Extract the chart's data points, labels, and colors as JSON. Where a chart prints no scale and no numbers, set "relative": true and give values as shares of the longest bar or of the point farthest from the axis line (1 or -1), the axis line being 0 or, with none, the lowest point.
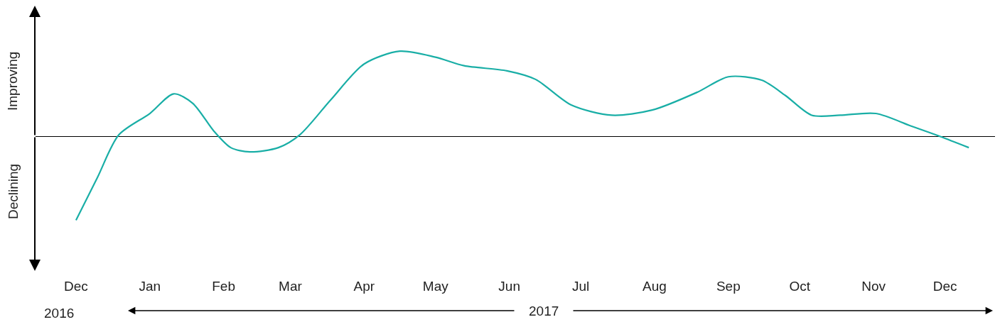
{
  "chart_data": {
    "type": "line",
    "relative": true,
    "x": [
      "2016-12-01",
      "2016-12-10",
      "2016-12-19",
      "2017-01-01",
      "2017-01-11",
      "2017-01-19",
      "2017-01-28",
      "2017-02-04",
      "2017-02-12",
      "2017-02-24",
      "2017-03-05",
      "2017-03-18",
      "2017-04-01",
      "2017-04-16",
      "2017-05-01",
      "2017-05-13",
      "2017-05-31",
      "2017-06-12",
      "2017-06-27",
      "2017-07-14",
      "2017-07-31",
      "2017-08-19",
      "2017-09-01",
      "2017-09-15",
      "2017-09-25",
      "2017-10-06",
      "2017-10-18",
      "2017-11-02",
      "2017-11-17",
      "2017-11-29",
      "2017-12-11"
    ],
    "series": [
      {
        "color": "#19aea6",
        "values": [
          -0.98,
          -0.48,
          0.02,
          0.27,
          0.5,
          0.39,
          0.06,
          -0.13,
          -0.18,
          -0.13,
          0.02,
          0.43,
          0.85,
          1.0,
          0.93,
          0.83,
          0.77,
          0.67,
          0.37,
          0.25,
          0.31,
          0.52,
          0.7,
          0.66,
          0.48,
          0.25,
          0.25,
          0.27,
          0.12,
          0,
          -0.13
        ]
      }
    ],
    "xlim": [
      "2016-11-14",
      "2017-12-22"
    ],
    "xticks": [
      {
        "value": "2016-12-01",
        "label": "Dec"
      },
      {
        "value": "2017-01-01",
        "label": "Jan"
      },
      {
        "value": "2017-02-01",
        "label": "Feb"
      },
      {
        "value": "2017-03-01",
        "label": "Mar"
      },
      {
        "value": "2017-04-01",
        "label": "Apr"
      },
      {
        "value": "2017-05-01",
        "label": "May"
      },
      {
        "value": "2017-06-01",
        "label": "Jun"
      },
      {
        "value": "2017-07-01",
        "label": "Jul"
      },
      {
        "value": "2017-08-01",
        "label": "Aug"
      },
      {
        "value": "2017-09-01",
        "label": "Sep"
      },
      {
        "value": "2017-10-01",
        "label": "Oct"
      },
      {
        "value": "2017-11-01",
        "label": "Nov"
      },
      {
        "value": "2017-12-01",
        "label": "Dec"
      }
    ],
    "ref_lines": [
      {
        "axis": "y",
        "value": 0,
        "color": "#000000"
      }
    ],
    "annotations": [
      "Improving",
      "Declining",
      "2016",
      "2017"
    ],
    "grid": false,
    "marker": "none",
    "line_style": "solid"
  }
}
